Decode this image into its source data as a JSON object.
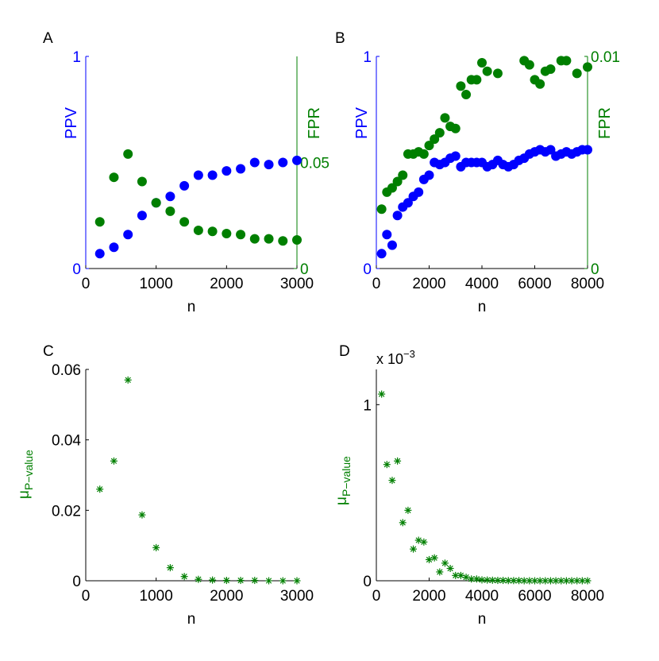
{
  "colors": {
    "blue": "#0000ff",
    "green": "#007f00",
    "axis": "#000000"
  },
  "chart_data": [
    {
      "id": "A",
      "type": "scatter",
      "panel_label": "A",
      "xlabel": "n",
      "ylabel_left": "PPV",
      "ylabel_right": "FPR",
      "xlim": [
        0,
        3000
      ],
      "ylim_left": [
        0,
        1
      ],
      "ylim_right": [
        0,
        0.1
      ],
      "xticks": [
        {
          "v": 0,
          "label": "0"
        },
        {
          "v": 1000,
          "label": "1000"
        },
        {
          "v": 2000,
          "label": "2000"
        },
        {
          "v": 3000,
          "label": "3000"
        }
      ],
      "yticks_left": [
        {
          "v": 0,
          "label": "0"
        },
        {
          "v": 1,
          "label": "1"
        }
      ],
      "yticks_right": [
        {
          "v": 0,
          "label": "0"
        },
        {
          "v": 0.05,
          "label": "0.05"
        }
      ],
      "series": [
        {
          "axis": "left",
          "color": "blue",
          "marker": "dot",
          "x": [
            200,
            400,
            600,
            800,
            1000,
            1200,
            1400,
            1600,
            1800,
            2000,
            2200,
            2400,
            2600,
            2800,
            3000
          ],
          "y": [
            0.07,
            0.1,
            0.16,
            0.25,
            0.31,
            0.34,
            0.39,
            0.44,
            0.44,
            0.46,
            0.47,
            0.5,
            0.49,
            0.5,
            0.51
          ]
        },
        {
          "axis": "right",
          "color": "green",
          "marker": "dot",
          "x": [
            200,
            400,
            600,
            800,
            1000,
            1200,
            1400,
            1600,
            1800,
            2000,
            2200,
            2400,
            2600,
            2800,
            3000
          ],
          "y": [
            0.022,
            0.043,
            0.054,
            0.041,
            0.031,
            0.027,
            0.022,
            0.018,
            0.0175,
            0.0165,
            0.016,
            0.014,
            0.014,
            0.013,
            0.0135
          ]
        }
      ]
    },
    {
      "id": "B",
      "type": "scatter",
      "panel_label": "B",
      "xlabel": "n",
      "ylabel_left": "PPV",
      "ylabel_right": "FPR",
      "xlim": [
        0,
        8000
      ],
      "ylim_left": [
        0,
        1
      ],
      "ylim_right": [
        0,
        0.01
      ],
      "xticks": [
        {
          "v": 0,
          "label": "0"
        },
        {
          "v": 2000,
          "label": "2000"
        },
        {
          "v": 4000,
          "label": "4000"
        },
        {
          "v": 6000,
          "label": "6000"
        },
        {
          "v": 8000,
          "label": "8000"
        }
      ],
      "yticks_left": [
        {
          "v": 0,
          "label": "0"
        },
        {
          "v": 1,
          "label": "1"
        }
      ],
      "yticks_right": [
        {
          "v": 0,
          "label": "0"
        },
        {
          "v": 0.01,
          "label": "0.01"
        }
      ],
      "series": [
        {
          "axis": "left",
          "color": "blue",
          "marker": "dot",
          "x": [
            200,
            400,
            600,
            800,
            1000,
            1200,
            1400,
            1600,
            1800,
            2000,
            2200,
            2400,
            2600,
            2800,
            3000,
            3200,
            3400,
            3600,
            3800,
            4000,
            4200,
            4400,
            4600,
            4800,
            5000,
            5200,
            5400,
            5600,
            5800,
            6000,
            6200,
            6400,
            6600,
            6800,
            7000,
            7200,
            7400,
            7600,
            7800,
            8000
          ],
          "y": [
            0.07,
            0.16,
            0.11,
            0.25,
            0.29,
            0.31,
            0.34,
            0.36,
            0.42,
            0.44,
            0.5,
            0.49,
            0.5,
            0.52,
            0.53,
            0.48,
            0.5,
            0.5,
            0.5,
            0.5,
            0.48,
            0.49,
            0.51,
            0.49,
            0.48,
            0.49,
            0.51,
            0.52,
            0.54,
            0.55,
            0.56,
            0.55,
            0.56,
            0.53,
            0.54,
            0.55,
            0.54,
            0.55,
            0.56,
            0.56
          ]
        },
        {
          "axis": "right",
          "color": "green",
          "marker": "dot",
          "x": [
            200,
            400,
            600,
            800,
            1000,
            1200,
            1400,
            1600,
            1800,
            2000,
            2200,
            2400,
            2600,
            2800,
            3000,
            3200,
            3400,
            3600,
            3800,
            4000,
            4200,
            4600,
            5600,
            5800,
            6000,
            6200,
            6400,
            6600,
            7000,
            7200,
            7600,
            8000
          ],
          "y": [
            0.0028,
            0.0036,
            0.0038,
            0.0041,
            0.0044,
            0.0054,
            0.0054,
            0.0055,
            0.0054,
            0.0058,
            0.0061,
            0.0064,
            0.0071,
            0.0067,
            0.0066,
            0.0086,
            0.0082,
            0.0089,
            0.0089,
            0.0097,
            0.0093,
            0.0092,
            0.0098,
            0.0096,
            0.0089,
            0.0087,
            0.0093,
            0.0094,
            0.0098,
            0.0098,
            0.0092,
            0.0095
          ]
        }
      ]
    },
    {
      "id": "C",
      "type": "scatter",
      "panel_label": "C",
      "xlabel": "n",
      "ylabel": "μ",
      "ylabel_sub": "P−value",
      "xlim": [
        0,
        3000
      ],
      "ylim": [
        0,
        0.06
      ],
      "xticks": [
        {
          "v": 0,
          "label": "0"
        },
        {
          "v": 1000,
          "label": "1000"
        },
        {
          "v": 2000,
          "label": "2000"
        },
        {
          "v": 3000,
          "label": "3000"
        }
      ],
      "yticks": [
        {
          "v": 0,
          "label": "0"
        },
        {
          "v": 0.02,
          "label": "0.02"
        },
        {
          "v": 0.04,
          "label": "0.04"
        },
        {
          "v": 0.06,
          "label": "0.06"
        }
      ],
      "series": [
        {
          "color": "green",
          "marker": "star",
          "x": [
            200,
            400,
            600,
            800,
            1000,
            1200,
            1400,
            1600,
            1800,
            2000,
            2200,
            2400,
            2600,
            2800,
            3000
          ],
          "y": [
            0.026,
            0.034,
            0.057,
            0.0187,
            0.0094,
            0.0037,
            0.0012,
            0.0004,
            0.0002,
            0.0001,
            0.0001,
            0.0001,
            0.0,
            0.0,
            0.0
          ]
        }
      ]
    },
    {
      "id": "D",
      "type": "scatter",
      "panel_label": "D",
      "xlabel": "n",
      "ylabel": "μ",
      "ylabel_sub": "P−value",
      "exponent_base": "x 10",
      "exponent_power": "−3",
      "xlim": [
        0,
        8000
      ],
      "ylim": [
        0,
        1.2
      ],
      "xticks": [
        {
          "v": 0,
          "label": "0"
        },
        {
          "v": 2000,
          "label": "2000"
        },
        {
          "v": 4000,
          "label": "4000"
        },
        {
          "v": 6000,
          "label": "6000"
        },
        {
          "v": 8000,
          "label": "8000"
        }
      ],
      "yticks": [
        {
          "v": 0,
          "label": "0"
        },
        {
          "v": 1,
          "label": "1"
        }
      ],
      "series": [
        {
          "color": "green",
          "marker": "star",
          "x": [
            200,
            400,
            600,
            800,
            1000,
            1200,
            1400,
            1600,
            1800,
            2000,
            2200,
            2400,
            2600,
            2800,
            3000,
            3200,
            3400,
            3600,
            3800,
            4000,
            4200,
            4400,
            4600,
            4800,
            5000,
            5200,
            5400,
            5600,
            5800,
            6000,
            6200,
            6400,
            6600,
            6800,
            7000,
            7200,
            7400,
            7600,
            7800,
            8000
          ],
          "y": [
            1.06,
            0.66,
            0.57,
            0.68,
            0.33,
            0.4,
            0.18,
            0.23,
            0.22,
            0.12,
            0.13,
            0.05,
            0.1,
            0.07,
            0.03,
            0.03,
            0.02,
            0.01,
            0.01,
            0.005,
            0.004,
            0.003,
            0.002,
            0.002,
            0.001,
            0.001,
            0.001,
            0.0,
            0.0,
            0.0,
            0.0,
            0.0,
            0.0,
            0.0,
            0.0,
            0.0,
            0.0,
            0.0,
            0.0,
            0.0
          ]
        }
      ]
    }
  ]
}
